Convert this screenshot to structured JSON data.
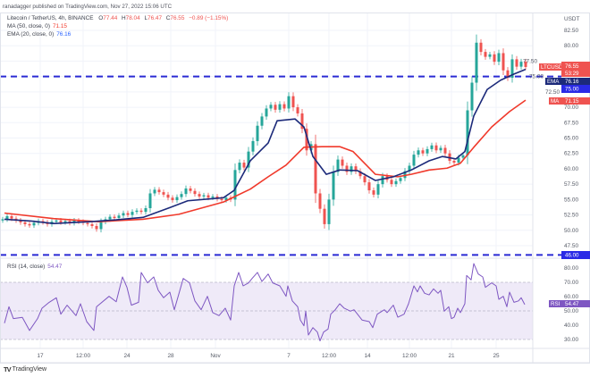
{
  "header": {
    "published": "ranadagger published on TradingView.com, Nov 27, 2022 15:06 UTC",
    "symbol_line": "Litecoin / TetherUS, 4h, BINANCE",
    "open_label": "O",
    "open": "77.44",
    "high_label": "H",
    "high": "78.04",
    "low_label": "L",
    "low": "76.47",
    "close_label": "C",
    "close": "76.55",
    "change": "−0.89 (−1.15%)",
    "ma_label": "MA (50, close, 0)",
    "ma_value": "71.15",
    "ema_label": "EMA (20, close, 0)",
    "ema_value": "76.16",
    "rsi_label": "RSI (14, close)",
    "rsi_value": "54.47"
  },
  "price_axis": {
    "currency": "USDT",
    "ticks": [
      "82.50",
      "80.00",
      "77.50",
      "75.00",
      "72.50",
      "70.00",
      "67.50",
      "65.00",
      "62.50",
      "60.00",
      "57.50",
      "55.00",
      "52.50",
      "50.00",
      "47.50"
    ]
  },
  "rsi_axis": {
    "ticks": [
      "80.00",
      "70.00",
      "60.00",
      "50.00",
      "40.00",
      "30.00"
    ]
  },
  "tags": {
    "symbol": "LTCUSDT",
    "last_price": "76.55",
    "countdown": "53:29",
    "ema": "EMA",
    "ema_value": "76.16",
    "resistance": "75.00",
    "ma": "MA",
    "ma_value": "71.15",
    "support": "46.00",
    "rsi": "RSI",
    "rsi_value": "54.47"
  },
  "time_axis": [
    {
      "label": "17",
      "bar": 8.4
    },
    {
      "label": "12:00",
      "bar": 18
    },
    {
      "label": "24",
      "bar": 27.8
    },
    {
      "label": "28",
      "bar": 37.6
    },
    {
      "label": "Nov",
      "bar": 47.6
    },
    {
      "label": "7",
      "bar": 64
    },
    {
      "label": "12:00",
      "bar": 73
    },
    {
      "label": "14",
      "bar": 81.6
    },
    {
      "label": "12:00",
      "bar": 91
    },
    {
      "label": "21",
      "bar": 100.4
    },
    {
      "label": "25",
      "bar": 110.4
    }
  ],
  "footer": {
    "brand": "TradingView"
  },
  "colors": {
    "up": "#26a69a",
    "down": "#ef5350",
    "ema": "#1c2a7a",
    "ma": "#f0392b",
    "level": "#2a2ad4",
    "rsi": "#7e57c2",
    "rsi_band": "#efeaf8"
  },
  "chart_data": [
    {
      "type": "candlestick",
      "title": "Litecoin / TetherUS, 4h, BINANCE",
      "ylim": [
        46,
        84.5
      ],
      "horizontal_levels": [
        75.0,
        46.0
      ],
      "grid": true,
      "closes": [
        51.8,
        52.3,
        51.9,
        51.6,
        51.3,
        51.0,
        50.8,
        51.2,
        51.5,
        51.3,
        51.0,
        51.4,
        51.6,
        51.3,
        51.5,
        51.2,
        51.6,
        51.4,
        51.2,
        51.0,
        50.7,
        50.2,
        51.4,
        51.8,
        52.2,
        52.0,
        52.4,
        52.8,
        52.5,
        53.0,
        53.2,
        53.0,
        53.6,
        56.0,
        56.6,
        56.2,
        55.8,
        55.3,
        54.9,
        55.4,
        55.9,
        56.8,
        56.4,
        55.9,
        55.5,
        55.7,
        55.3,
        55.5,
        55.1,
        54.9,
        55.3,
        55.0,
        59.8,
        61.0,
        60.2,
        62.8,
        64.5,
        67.0,
        68.5,
        69.8,
        70.4,
        69.6,
        70.5,
        69.8,
        71.8,
        70.0,
        69.0,
        66.5,
        63.0,
        64.0,
        56.0,
        53.5,
        51.0,
        55.0,
        59.5,
        61.5,
        60.5,
        59.5,
        60.4,
        59.6,
        58.8,
        57.8,
        56.5,
        55.8,
        57.5,
        58.8,
        58.2,
        57.5,
        58.0,
        58.5,
        59.6,
        60.5,
        62.3,
        63.0,
        62.5,
        63.2,
        63.8,
        63.0,
        63.4,
        62.5,
        61.3,
        61.0,
        61.8,
        62.2,
        69.5,
        74.0,
        80.5,
        79.0,
        78.2,
        78.6,
        77.4,
        78.8,
        76.0,
        74.8,
        77.8,
        76.6,
        77.4,
        76.55
      ],
      "ema20": [
        [
          0.4,
          51.8
        ],
        [
          6.4,
          51.5
        ],
        [
          11.4,
          51.1
        ],
        [
          19.4,
          51.4
        ],
        [
          25.4,
          51.7
        ],
        [
          31.4,
          52.1
        ],
        [
          37.4,
          53.7
        ],
        [
          41.4,
          54.8
        ],
        [
          49.4,
          55.3
        ],
        [
          51.8,
          56.5
        ],
        [
          55.4,
          61.3
        ],
        [
          59.4,
          64.2
        ],
        [
          61.4,
          67.8
        ],
        [
          65.4,
          68.1
        ],
        [
          67.4,
          66.8
        ],
        [
          69.4,
          62
        ],
        [
          72.4,
          59.1
        ],
        [
          75.4,
          59.8
        ],
        [
          79.4,
          59.7
        ],
        [
          83.4,
          58.1
        ],
        [
          87.4,
          58.7
        ],
        [
          91.4,
          59.8
        ],
        [
          95.4,
          61.3
        ],
        [
          98.4,
          62
        ],
        [
          101.4,
          61.6
        ],
        [
          103.4,
          62.8
        ],
        [
          105.4,
          68.6
        ],
        [
          108.4,
          72.9
        ],
        [
          111.4,
          74.4
        ],
        [
          114.4,
          75.4
        ],
        [
          117,
          76.16
        ]
      ],
      "ma50": [
        [
          0.4,
          52.8
        ],
        [
          11.4,
          51.9
        ],
        [
          21.4,
          51.4
        ],
        [
          31.4,
          51.8
        ],
        [
          39.4,
          52.6
        ],
        [
          49.4,
          54.6
        ],
        [
          55.4,
          56.7
        ],
        [
          59.4,
          58.7
        ],
        [
          63.4,
          60.6
        ],
        [
          67.4,
          63.5
        ],
        [
          71.4,
          63.6
        ],
        [
          75.4,
          63.6
        ],
        [
          78.4,
          62.8
        ],
        [
          83.4,
          59.1
        ],
        [
          88.4,
          58.7
        ],
        [
          91.4,
          59.1
        ],
        [
          95.4,
          59.8
        ],
        [
          99.4,
          60.1
        ],
        [
          102.4,
          60.9
        ],
        [
          105.4,
          63.5
        ],
        [
          109.4,
          66.8
        ],
        [
          113.4,
          69.3
        ],
        [
          117,
          71.15
        ]
      ]
    },
    {
      "type": "line",
      "title": "RSI (14, close)",
      "ylim": [
        25,
        85
      ],
      "bands": [
        70,
        50,
        30
      ],
      "rsi": [
        [
          0.4,
          41.4
        ],
        [
          1.4,
          52.9
        ],
        [
          2.4,
          44.6
        ],
        [
          4.4,
          45.5
        ],
        [
          6,
          36.3
        ],
        [
          7.8,
          44.6
        ],
        [
          8.8,
          51.9
        ],
        [
          10.4,
          56
        ],
        [
          12,
          59.2
        ],
        [
          13,
          47.7
        ],
        [
          14.4,
          54
        ],
        [
          16.4,
          46.7
        ],
        [
          17.4,
          55
        ],
        [
          18.8,
          42.5
        ],
        [
          20.4,
          36.3
        ],
        [
          21,
          52.9
        ],
        [
          23.8,
          60.2
        ],
        [
          25.4,
          56.4
        ],
        [
          26.8,
          73.75
        ],
        [
          27.8,
          66.5
        ],
        [
          28.8,
          54
        ],
        [
          30.4,
          56
        ],
        [
          31,
          76.9
        ],
        [
          32.4,
          69.6
        ],
        [
          33.8,
          73.75
        ],
        [
          34.8,
          64.4
        ],
        [
          36,
          59.2
        ],
        [
          37.4,
          63.1
        ],
        [
          38.4,
          50.8
        ],
        [
          40.4,
          72.7
        ],
        [
          41.8,
          69.6
        ],
        [
          43,
          57
        ],
        [
          44.4,
          50.8
        ],
        [
          45.8,
          60.2
        ],
        [
          47,
          48.8
        ],
        [
          48.4,
          46.7
        ],
        [
          49.8,
          51.9
        ],
        [
          51,
          43.6
        ],
        [
          51.8,
          67.5
        ],
        [
          52.8,
          76.9
        ],
        [
          53.8,
          67.5
        ],
        [
          55,
          69.6
        ],
        [
          55.8,
          72.7
        ],
        [
          57,
          76.9
        ],
        [
          58,
          70.6
        ],
        [
          59.4,
          75.8
        ],
        [
          60.4,
          69.6
        ],
        [
          62,
          67.5
        ],
        [
          63.4,
          60.2
        ],
        [
          63.8,
          67.5
        ],
        [
          64.8,
          57
        ],
        [
          66,
          52.9
        ],
        [
          66.6,
          43.6
        ],
        [
          67.4,
          39.6
        ],
        [
          67.8,
          49.8
        ],
        [
          68.4,
          33.1
        ],
        [
          69.4,
          38.3
        ],
        [
          70.4,
          35.2
        ],
        [
          71,
          29
        ],
        [
          71.8,
          35.2
        ],
        [
          72.8,
          37.3
        ],
        [
          73.4,
          47.7
        ],
        [
          74.4,
          50.8
        ],
        [
          75.4,
          55
        ],
        [
          76.4,
          51.9
        ],
        [
          77.8,
          49.8
        ],
        [
          78.6,
          50.8
        ],
        [
          80.4,
          43.6
        ],
        [
          82,
          42.5
        ],
        [
          82.8,
          38.3
        ],
        [
          83.8,
          47.7
        ],
        [
          85.4,
          50.8
        ],
        [
          86,
          48.8
        ],
        [
          87.4,
          54
        ],
        [
          88.4,
          45.6
        ],
        [
          89.8,
          47.7
        ],
        [
          90.8,
          55
        ],
        [
          92,
          67.5
        ],
        [
          92.8,
          63.3
        ],
        [
          93.4,
          67.5
        ],
        [
          94.4,
          62.3
        ],
        [
          95.4,
          61.2
        ],
        [
          96.4,
          65.4
        ],
        [
          97.4,
          62.3
        ],
        [
          98,
          64.4
        ],
        [
          98.8,
          49.8
        ],
        [
          99.8,
          52.9
        ],
        [
          100.4,
          44.6
        ],
        [
          101,
          45.6
        ],
        [
          101.8,
          51.9
        ],
        [
          102.4,
          48.8
        ],
        [
          103.4,
          55
        ],
        [
          103.8,
          74.8
        ],
        [
          104.8,
          71.7
        ],
        [
          105.4,
          83.1
        ],
        [
          106.4,
          75.8
        ],
        [
          107.4,
          73.75
        ],
        [
          108,
          66.5
        ],
        [
          109.4,
          69.6
        ],
        [
          110.4,
          67.5
        ],
        [
          111,
          58.1
        ],
        [
          112,
          60.2
        ],
        [
          112.8,
          52.9
        ],
        [
          113.4,
          63.1
        ],
        [
          114.4,
          56
        ],
        [
          115.4,
          57
        ],
        [
          116,
          59.2
        ],
        [
          116.8,
          54.47
        ]
      ]
    }
  ]
}
